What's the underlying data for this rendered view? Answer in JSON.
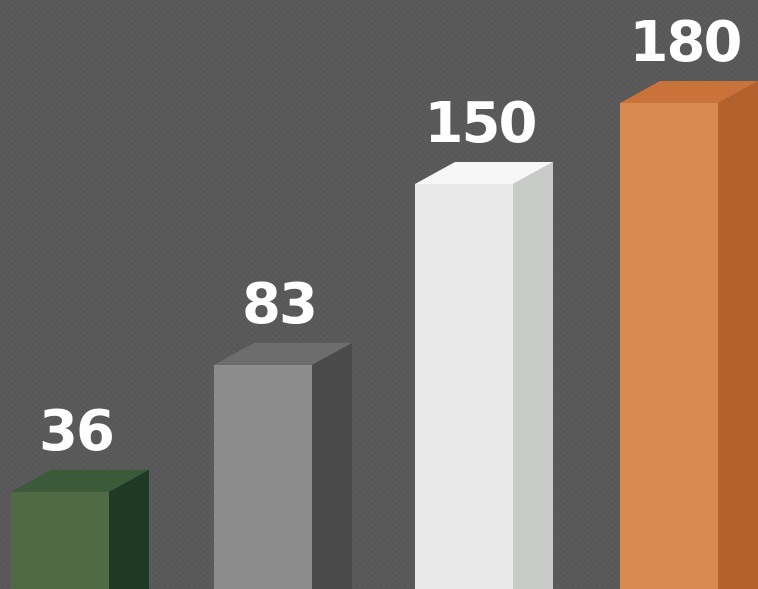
{
  "chart_data": {
    "type": "bar",
    "categories": [
      "",
      "",
      "",
      ""
    ],
    "values": [
      36,
      83,
      150,
      180
    ],
    "labels": [
      "36",
      "83",
      "150",
      "180"
    ],
    "colors": [
      {
        "front": "#4f6a45",
        "side": "#1f3a24",
        "top": "#3b5a39"
      },
      {
        "front": "#8c8c8d",
        "side": "#4a4a4b",
        "top": "#6d6d6e"
      },
      {
        "front": "#e9e9e9",
        "side": "#c9cbc8",
        "top": "#f7f7f7"
      },
      {
        "front": "#d98a4e",
        "side": "#b4622d",
        "top": "#c9733a"
      }
    ],
    "title": "",
    "xlabel": "",
    "ylabel": "",
    "ylim": [
      0,
      180
    ],
    "grid": false,
    "legend": "none",
    "style": "3d"
  }
}
